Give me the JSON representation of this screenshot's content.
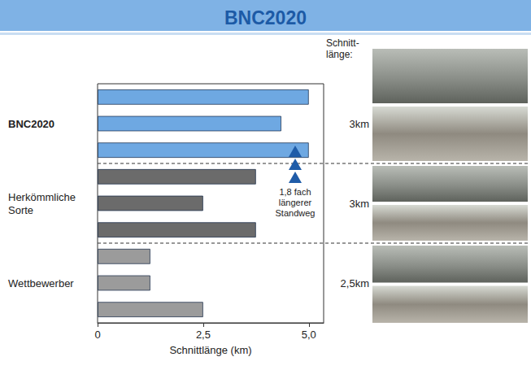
{
  "chart_data": {
    "type": "bar",
    "title": "BNC2020",
    "orientation": "horizontal",
    "categories": [
      null,
      "BNC2020",
      null,
      null,
      "Herkömmliche Sorte",
      null,
      null,
      "Wettbewerber",
      null
    ],
    "values": [
      5.0,
      4.35,
      5.0,
      3.75,
      2.5,
      3.75,
      1.25,
      1.25,
      2.5
    ],
    "colors": [
      "#6ea8e2",
      "#6ea8e2",
      "#6ea8e2",
      "#6b6b6b",
      "#6b6b6b",
      "#6b6b6b",
      "#9b9b9b",
      "#9b9b9b",
      "#9b9b9b"
    ],
    "xlabel": "Schnittlänge (km)",
    "xlim": [
      0,
      5.35
    ],
    "xticks": [
      0,
      {
        "value": 2.5,
        "label": "2,5"
      },
      {
        "value": 5,
        "label": "5,0"
      }
    ],
    "grid": false,
    "annotations": [
      "1,8 fach\nlängerer\nStandweg"
    ],
    "cut_length_header": "Schnitt-\nlänge:",
    "cut_lengths": [
      "3km",
      "3km",
      "2,5km"
    ]
  }
}
